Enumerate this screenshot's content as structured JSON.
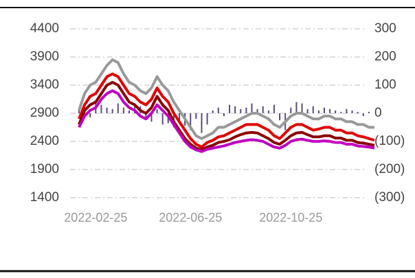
{
  "chart_data": {
    "type": "line",
    "categories": [
      null,
      null,
      null,
      "2022-02-25",
      null,
      null,
      null,
      null,
      null,
      null,
      null,
      null,
      null,
      null,
      null,
      null,
      null,
      null,
      null,
      null,
      "2022-06-25",
      null,
      null,
      null,
      null,
      null,
      null,
      null,
      null,
      null,
      null,
      null,
      null,
      null,
      null,
      null,
      null,
      null,
      "2022-10-25",
      null,
      null,
      null,
      null,
      null,
      null,
      null,
      null,
      null,
      null,
      null,
      null,
      null,
      null,
      null
    ],
    "series": [
      {
        "type": "bar",
        "axis": "y2",
        "color": "#5a4a7a",
        "values": [
          10,
          25,
          -15,
          40,
          30,
          20,
          15,
          35,
          20,
          10,
          30,
          25,
          -20,
          -30,
          15,
          -40,
          -35,
          -50,
          -30,
          -45,
          -60,
          -20,
          -70,
          -40,
          10,
          20,
          -10,
          30,
          25,
          15,
          20,
          35,
          15,
          25,
          10,
          30,
          -25,
          -60,
          20,
          40,
          35,
          15,
          25,
          10,
          20,
          15,
          10,
          5,
          15,
          10,
          5,
          -10,
          5,
          0
        ]
      },
      {
        "type": "line",
        "color": "#999999",
        "values": [
          2950,
          3250,
          3400,
          3450,
          3600,
          3750,
          3850,
          3800,
          3600,
          3450,
          3400,
          3300,
          3250,
          3350,
          3550,
          3400,
          3300,
          3100,
          2950,
          2800,
          2650,
          2500,
          2450,
          2500,
          2550,
          2650,
          2650,
          2700,
          2750,
          2800,
          2850,
          2900,
          2900,
          2850,
          2800,
          2700,
          2650,
          2750,
          2850,
          2900,
          2900,
          2850,
          2800,
          2800,
          2850,
          2850,
          2800,
          2800,
          2750,
          2750,
          2700,
          2700,
          2650,
          2650
        ]
      },
      {
        "type": "line",
        "color": "#e00000",
        "values": [
          2800,
          3050,
          3200,
          3250,
          3400,
          3550,
          3600,
          3550,
          3400,
          3250,
          3200,
          3100,
          3050,
          3150,
          3350,
          3200,
          3100,
          2900,
          2750,
          2600,
          2450,
          2350,
          2300,
          2380,
          2420,
          2480,
          2500,
          2550,
          2600,
          2650,
          2700,
          2700,
          2700,
          2650,
          2600,
          2500,
          2450,
          2550,
          2650,
          2700,
          2700,
          2650,
          2600,
          2620,
          2650,
          2650,
          2600,
          2600,
          2550,
          2550,
          2500,
          2480,
          2450,
          2420
        ]
      },
      {
        "type": "line",
        "color": "#8b0000",
        "values": [
          2700,
          2950,
          3050,
          3100,
          3250,
          3400,
          3450,
          3400,
          3250,
          3100,
          3050,
          2950,
          2900,
          3000,
          3200,
          3050,
          2950,
          2750,
          2600,
          2450,
          2350,
          2280,
          2250,
          2300,
          2330,
          2380,
          2400,
          2430,
          2480,
          2520,
          2550,
          2560,
          2550,
          2500,
          2450,
          2380,
          2350,
          2420,
          2500,
          2550,
          2560,
          2520,
          2480,
          2480,
          2500,
          2500,
          2460,
          2460,
          2420,
          2420,
          2380,
          2370,
          2350,
          2330
        ]
      },
      {
        "type": "line",
        "color": "#c000c0",
        "values": [
          2650,
          2850,
          2950,
          3000,
          3150,
          3250,
          3300,
          3250,
          3100,
          3000,
          2950,
          2850,
          2800,
          2900,
          3050,
          2950,
          2850,
          2700,
          2550,
          2400,
          2300,
          2250,
          2220,
          2260,
          2280,
          2300,
          2320,
          2350,
          2380,
          2400,
          2420,
          2430,
          2420,
          2400,
          2350,
          2300,
          2280,
          2330,
          2400,
          2430,
          2440,
          2420,
          2400,
          2400,
          2410,
          2400,
          2380,
          2380,
          2350,
          2350,
          2320,
          2310,
          2300,
          2280
        ]
      }
    ],
    "ylim": [
      1400,
      4400
    ],
    "yticks": [
      1400,
      1900,
      2400,
      2900,
      3400,
      3900,
      4400
    ],
    "y2lim": [
      -300,
      300
    ],
    "y2ticks": [
      {
        "value": -300,
        "label": "(300)"
      },
      {
        "value": -200,
        "label": "(200)"
      },
      {
        "value": -100,
        "label": "(100)"
      },
      0,
      100,
      200,
      300
    ],
    "grid": true
  }
}
